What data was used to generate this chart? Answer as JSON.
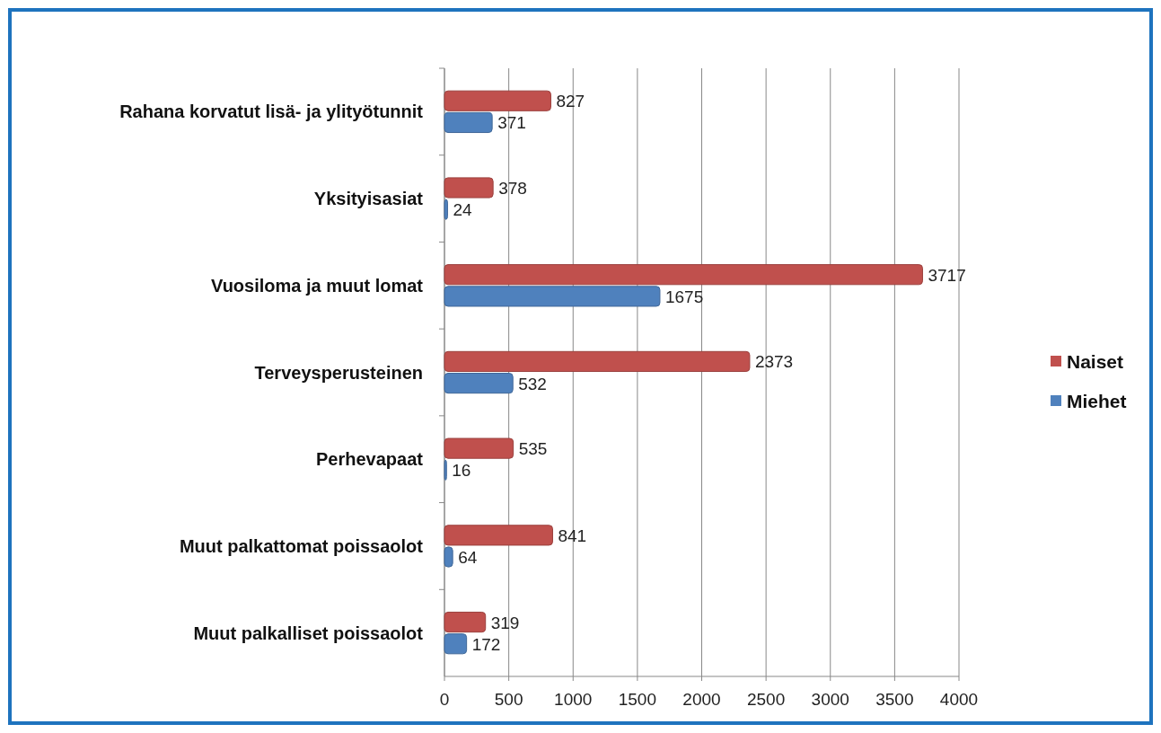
{
  "chart_data": {
    "type": "bar",
    "orientation": "horizontal",
    "categories": [
      "Rahana korvatut lisä- ja ylityötunnit",
      "Yksityisasiat",
      "Vuosiloma ja muut lomat",
      "Terveysperusteinen",
      "Perhevapaat",
      "Muut palkattomat poissaolot",
      "Muut palkalliset poissaolot"
    ],
    "series": [
      {
        "name": "Naiset",
        "color": "#c0504d",
        "values": [
          827,
          378,
          3717,
          2373,
          535,
          841,
          319
        ]
      },
      {
        "name": "Miehet",
        "color": "#4f81bd",
        "values": [
          371,
          24,
          1675,
          532,
          16,
          64,
          172
        ]
      }
    ],
    "xlim": [
      0,
      4000
    ],
    "xticks": [
      0,
      500,
      1000,
      1500,
      2000,
      2500,
      3000,
      3500,
      4000
    ],
    "grid": "x",
    "legend": "right",
    "data_labels": true
  }
}
